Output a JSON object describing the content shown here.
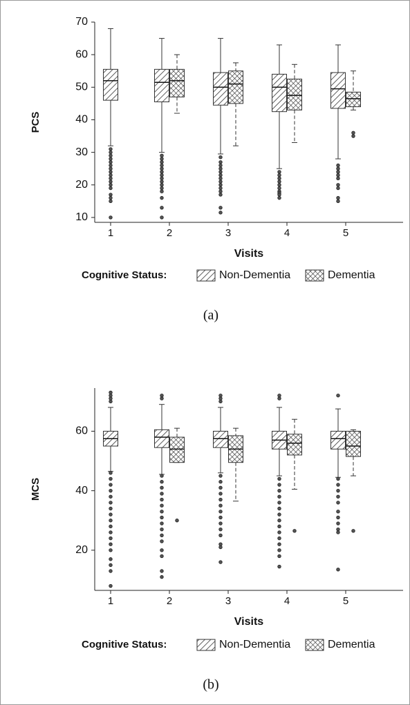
{
  "chart_data": [
    {
      "type": "box",
      "caption": "(a)",
      "y_label": "PCS",
      "x_label": "Visits",
      "legend_title": "Cognitive Status:",
      "categories": [
        "1",
        "2",
        "3",
        "4",
        "5"
      ],
      "ylim": [
        8.5,
        70
      ],
      "yticks": [
        10,
        20,
        30,
        40,
        50,
        60,
        70
      ],
      "series": [
        {
          "name": "Non-Dementia",
          "pattern": "diagonal",
          "boxes": [
            {
              "low": 32,
              "q1": 46,
              "median": 52,
              "q3": 55.5,
              "high": 68,
              "outliers": [
                31,
                30,
                29,
                28,
                27,
                26,
                25,
                24,
                23,
                22,
                21,
                20,
                19,
                17,
                16,
                15,
                10
              ]
            },
            {
              "low": 30,
              "q1": 45.5,
              "median": 51.5,
              "q3": 55.5,
              "high": 65,
              "outliers": [
                29,
                28,
                27,
                26,
                25,
                24,
                23,
                22,
                21,
                20,
                19,
                18,
                16,
                13,
                10
              ]
            },
            {
              "low": 29.5,
              "q1": 44.5,
              "median": 50,
              "q3": 54.5,
              "high": 65,
              "outliers": [
                28.5,
                27,
                26,
                25,
                24,
                23,
                22,
                21,
                20,
                19,
                18,
                17,
                13,
                11.5
              ]
            },
            {
              "low": 25,
              "q1": 42.5,
              "median": 50,
              "q3": 54,
              "high": 63,
              "outliers": [
                24,
                23,
                22,
                21,
                20,
                19,
                18,
                17.5,
                17,
                16
              ]
            },
            {
              "low": 28,
              "q1": 43.5,
              "median": 49.5,
              "q3": 54.5,
              "high": 63,
              "outliers": [
                26,
                25,
                24,
                23,
                22,
                20,
                19,
                16,
                15
              ]
            }
          ]
        },
        {
          "name": "Dementia",
          "pattern": "crosshatch",
          "boxes": [
            null,
            {
              "low": 42,
              "q1": 47,
              "median": 52,
              "q3": 55.5,
              "high": 60,
              "outliers": []
            },
            {
              "low": 32,
              "q1": 45,
              "median": 51,
              "q3": 55,
              "high": 57.5,
              "outliers": []
            },
            {
              "low": 33,
              "q1": 43,
              "median": 47.5,
              "q3": 52.5,
              "high": 57,
              "outliers": []
            },
            {
              "low": 43,
              "q1": 44,
              "median": 46.5,
              "q3": 48.5,
              "high": 55,
              "outliers": [
                36,
                35
              ]
            }
          ]
        }
      ]
    },
    {
      "type": "box",
      "caption": "(b)",
      "y_label": "MCS",
      "x_label": "Visits",
      "legend_title": "Cognitive Status:",
      "categories": [
        "1",
        "2",
        "3",
        "4",
        "5"
      ],
      "ylim": [
        6.5,
        74.5
      ],
      "yticks": [
        20,
        40,
        60
      ],
      "series": [
        {
          "name": "Non-Dementia",
          "pattern": "diagonal",
          "boxes": [
            {
              "low": 46.5,
              "q1": 55,
              "median": 57.5,
              "q3": 60,
              "high": 68,
              "outliers": [
                70,
                71,
                72,
                73,
                46,
                44,
                42,
                40,
                38,
                36,
                34,
                32,
                30,
                28,
                26,
                24,
                22,
                20,
                17,
                15,
                13,
                8
              ]
            },
            {
              "low": 45.5,
              "q1": 54.5,
              "median": 58,
              "q3": 60.5,
              "high": 69,
              "outliers": [
                71,
                72,
                45,
                43,
                41,
                39,
                37,
                35,
                33,
                31,
                29,
                27,
                25,
                23,
                20,
                18,
                13,
                11
              ]
            },
            {
              "low": 46,
              "q1": 54.5,
              "median": 57.5,
              "q3": 60,
              "high": 68,
              "outliers": [
                70,
                71,
                72,
                45,
                43,
                41,
                39,
                37,
                35,
                33,
                31,
                29,
                27,
                25,
                22,
                21,
                16
              ]
            },
            {
              "low": 45,
              "q1": 54,
              "median": 57,
              "q3": 60,
              "high": 68,
              "outliers": [
                71,
                72,
                44,
                42,
                40,
                38,
                36,
                34,
                32,
                30,
                28,
                26,
                24,
                22,
                20,
                18,
                14.5
              ]
            },
            {
              "low": 44.5,
              "q1": 54,
              "median": 57.5,
              "q3": 60,
              "high": 67.5,
              "outliers": [
                72,
                44,
                42,
                40,
                38,
                36,
                33,
                31,
                29,
                27,
                26,
                13.5
              ]
            }
          ]
        },
        {
          "name": "Dementia",
          "pattern": "crosshatch",
          "boxes": [
            null,
            {
              "low": 49.5,
              "q1": 49.5,
              "median": 54,
              "q3": 58,
              "high": 61,
              "outliers": [
                30
              ]
            },
            {
              "low": 36.5,
              "q1": 49.5,
              "median": 54,
              "q3": 58.5,
              "high": 61,
              "outliers": []
            },
            {
              "low": 40.5,
              "q1": 52,
              "median": 56,
              "q3": 59,
              "high": 64,
              "outliers": [
                26.5
              ]
            },
            {
              "low": 45,
              "q1": 51.5,
              "median": 55,
              "q3": 60,
              "high": 60.5,
              "outliers": [
                26.5
              ]
            }
          ]
        }
      ]
    }
  ]
}
